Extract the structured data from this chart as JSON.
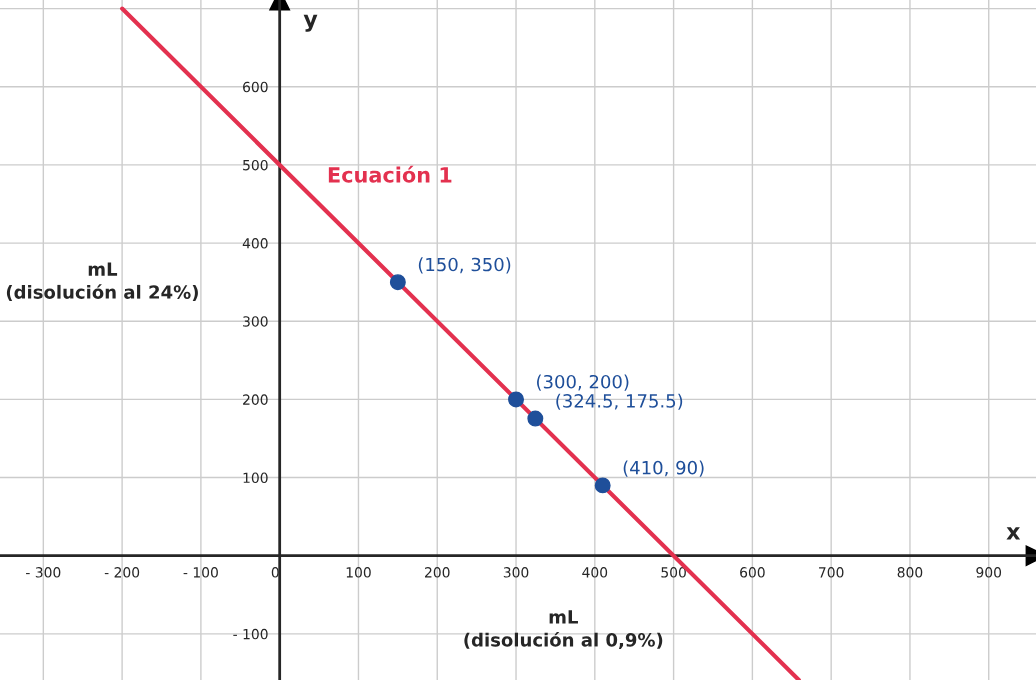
{
  "chart_data": {
    "type": "line",
    "xlabel": "mL\n(disolución al 0,9%)",
    "ylabel": "mL\n(disolución al 24%)",
    "xlim": [
      -355,
      960
    ],
    "ylim": [
      -159,
      711
    ],
    "xticks": [
      {
        "value": -300,
        "label": "- 300"
      },
      {
        "value": -200,
        "label": "- 200"
      },
      {
        "value": -100,
        "label": "- 100"
      },
      {
        "value": 0,
        "label": "0"
      },
      100,
      200,
      300,
      400,
      500,
      600,
      700,
      800,
      900
    ],
    "yticks": [
      {
        "value": -100,
        "label": "- 100"
      },
      {
        "value": 0,
        "label": null
      },
      100,
      200,
      300,
      400,
      500,
      600,
      {
        "value": 700,
        "label": null
      }
    ],
    "grid": true,
    "legend": false,
    "series": [
      {
        "name": "Ecuación 1",
        "color": "#e3314f",
        "x": [
          -200,
          659
        ],
        "values": [
          700,
          -159
        ],
        "marker": "none",
        "line_style": "solid"
      },
      {
        "type": "scatter",
        "color": "#1f4f9a",
        "x": [
          150,
          300,
          324.5,
          410
        ],
        "values": [
          350,
          200,
          175.5,
          90
        ],
        "marker": "circle"
      }
    ],
    "annotations": [
      "x",
      "y",
      {
        "text": "(150, 350)",
        "x": 150,
        "y": 350
      },
      {
        "text": "(300, 200)",
        "x": 300,
        "y": 200
      },
      {
        "text": "(324.5, 175.5)",
        "x": 324.5,
        "y": 175.5
      },
      {
        "text": "(410, 90)",
        "x": 410,
        "y": 90
      }
    ]
  }
}
